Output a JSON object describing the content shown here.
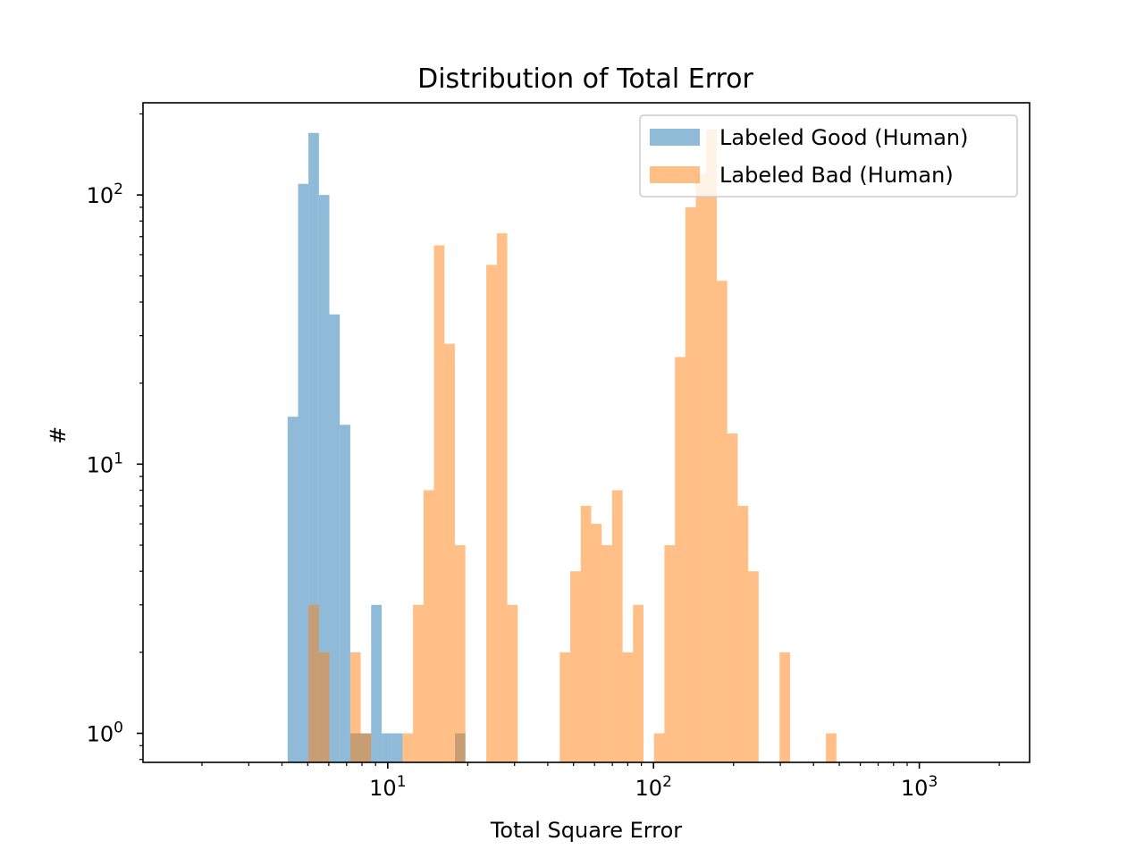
{
  "chart_data": {
    "type": "bar",
    "title": "Distribution of Total Error",
    "xlabel": "Total Square Error",
    "ylabel": "#",
    "xscale": "log",
    "yscale": "log",
    "xlim": [
      1.2,
      2600
    ],
    "ylim": [
      0.78,
      220
    ],
    "x_ticks": [
      {
        "value": 10,
        "base": "10",
        "exp": "1"
      },
      {
        "value": 100,
        "base": "10",
        "exp": "2"
      },
      {
        "value": 1000,
        "base": "10",
        "exp": "3"
      }
    ],
    "y_ticks": [
      {
        "value": 1,
        "base": "10",
        "exp": "0"
      },
      {
        "value": 10,
        "base": "10",
        "exp": "1"
      },
      {
        "value": 100,
        "base": "10",
        "exp": "2"
      }
    ],
    "grid": false,
    "legend_position": "upper-right",
    "series": [
      {
        "name": "Labeled Good (Human)",
        "color": "#1f77b4",
        "alpha": 0.5,
        "bins": [
          {
            "x0": 4.2,
            "x1": 4.6,
            "count": 15
          },
          {
            "x0": 4.6,
            "x1": 5.03,
            "count": 110
          },
          {
            "x0": 5.03,
            "x1": 5.51,
            "count": 170
          },
          {
            "x0": 5.51,
            "x1": 6.03,
            "count": 100
          },
          {
            "x0": 6.03,
            "x1": 6.6,
            "count": 36
          },
          {
            "x0": 6.6,
            "x1": 7.23,
            "count": 14
          },
          {
            "x0": 7.23,
            "x1": 7.91,
            "count": 1
          },
          {
            "x0": 7.91,
            "x1": 8.66,
            "count": 1
          },
          {
            "x0": 8.66,
            "x1": 9.49,
            "count": 3
          },
          {
            "x0": 9.49,
            "x1": 10.38,
            "count": 1
          },
          {
            "x0": 10.38,
            "x1": 11.37,
            "count": 1
          },
          {
            "x0": 17.9,
            "x1": 19.6,
            "count": 1
          }
        ]
      },
      {
        "name": "Labeled Bad (Human)",
        "color": "#ff7f0e",
        "alpha": 0.5,
        "bins": [
          {
            "x0": 5.03,
            "x1": 5.51,
            "count": 3
          },
          {
            "x0": 5.51,
            "x1": 6.03,
            "count": 2
          },
          {
            "x0": 7.23,
            "x1": 7.91,
            "count": 2
          },
          {
            "x0": 7.91,
            "x1": 8.66,
            "count": 1
          },
          {
            "x0": 11.37,
            "x1": 12.45,
            "count": 1
          },
          {
            "x0": 12.45,
            "x1": 13.63,
            "count": 3
          },
          {
            "x0": 13.63,
            "x1": 14.92,
            "count": 8
          },
          {
            "x0": 14.92,
            "x1": 16.34,
            "count": 65
          },
          {
            "x0": 16.34,
            "x1": 17.89,
            "count": 28
          },
          {
            "x0": 17.89,
            "x1": 19.59,
            "count": 5
          },
          {
            "x0": 23.49,
            "x1": 25.72,
            "count": 55
          },
          {
            "x0": 25.72,
            "x1": 28.16,
            "count": 72
          },
          {
            "x0": 28.16,
            "x1": 30.83,
            "count": 3
          },
          {
            "x0": 44.4,
            "x1": 48.61,
            "count": 2
          },
          {
            "x0": 48.61,
            "x1": 53.22,
            "count": 4
          },
          {
            "x0": 53.22,
            "x1": 58.28,
            "count": 7
          },
          {
            "x0": 58.28,
            "x1": 63.81,
            "count": 6
          },
          {
            "x0": 63.81,
            "x1": 69.86,
            "count": 5
          },
          {
            "x0": 69.86,
            "x1": 76.49,
            "count": 8
          },
          {
            "x0": 76.49,
            "x1": 83.75,
            "count": 2
          },
          {
            "x0": 83.75,
            "x1": 91.7,
            "count": 3
          },
          {
            "x0": 100.4,
            "x1": 109.93,
            "count": 1
          },
          {
            "x0": 109.93,
            "x1": 120.36,
            "count": 5
          },
          {
            "x0": 120.36,
            "x1": 131.79,
            "count": 25
          },
          {
            "x0": 131.79,
            "x1": 144.3,
            "count": 90
          },
          {
            "x0": 144.3,
            "x1": 157.99,
            "count": 120
          },
          {
            "x0": 157.99,
            "x1": 172.99,
            "count": 175
          },
          {
            "x0": 172.99,
            "x1": 189.4,
            "count": 48
          },
          {
            "x0": 189.4,
            "x1": 207.38,
            "count": 13
          },
          {
            "x0": 207.38,
            "x1": 227.06,
            "count": 7
          },
          {
            "x0": 227.06,
            "x1": 248.61,
            "count": 4
          },
          {
            "x0": 298.05,
            "x1": 326.34,
            "count": 2
          },
          {
            "x0": 445.34,
            "x1": 487.61,
            "count": 1
          }
        ]
      }
    ]
  }
}
